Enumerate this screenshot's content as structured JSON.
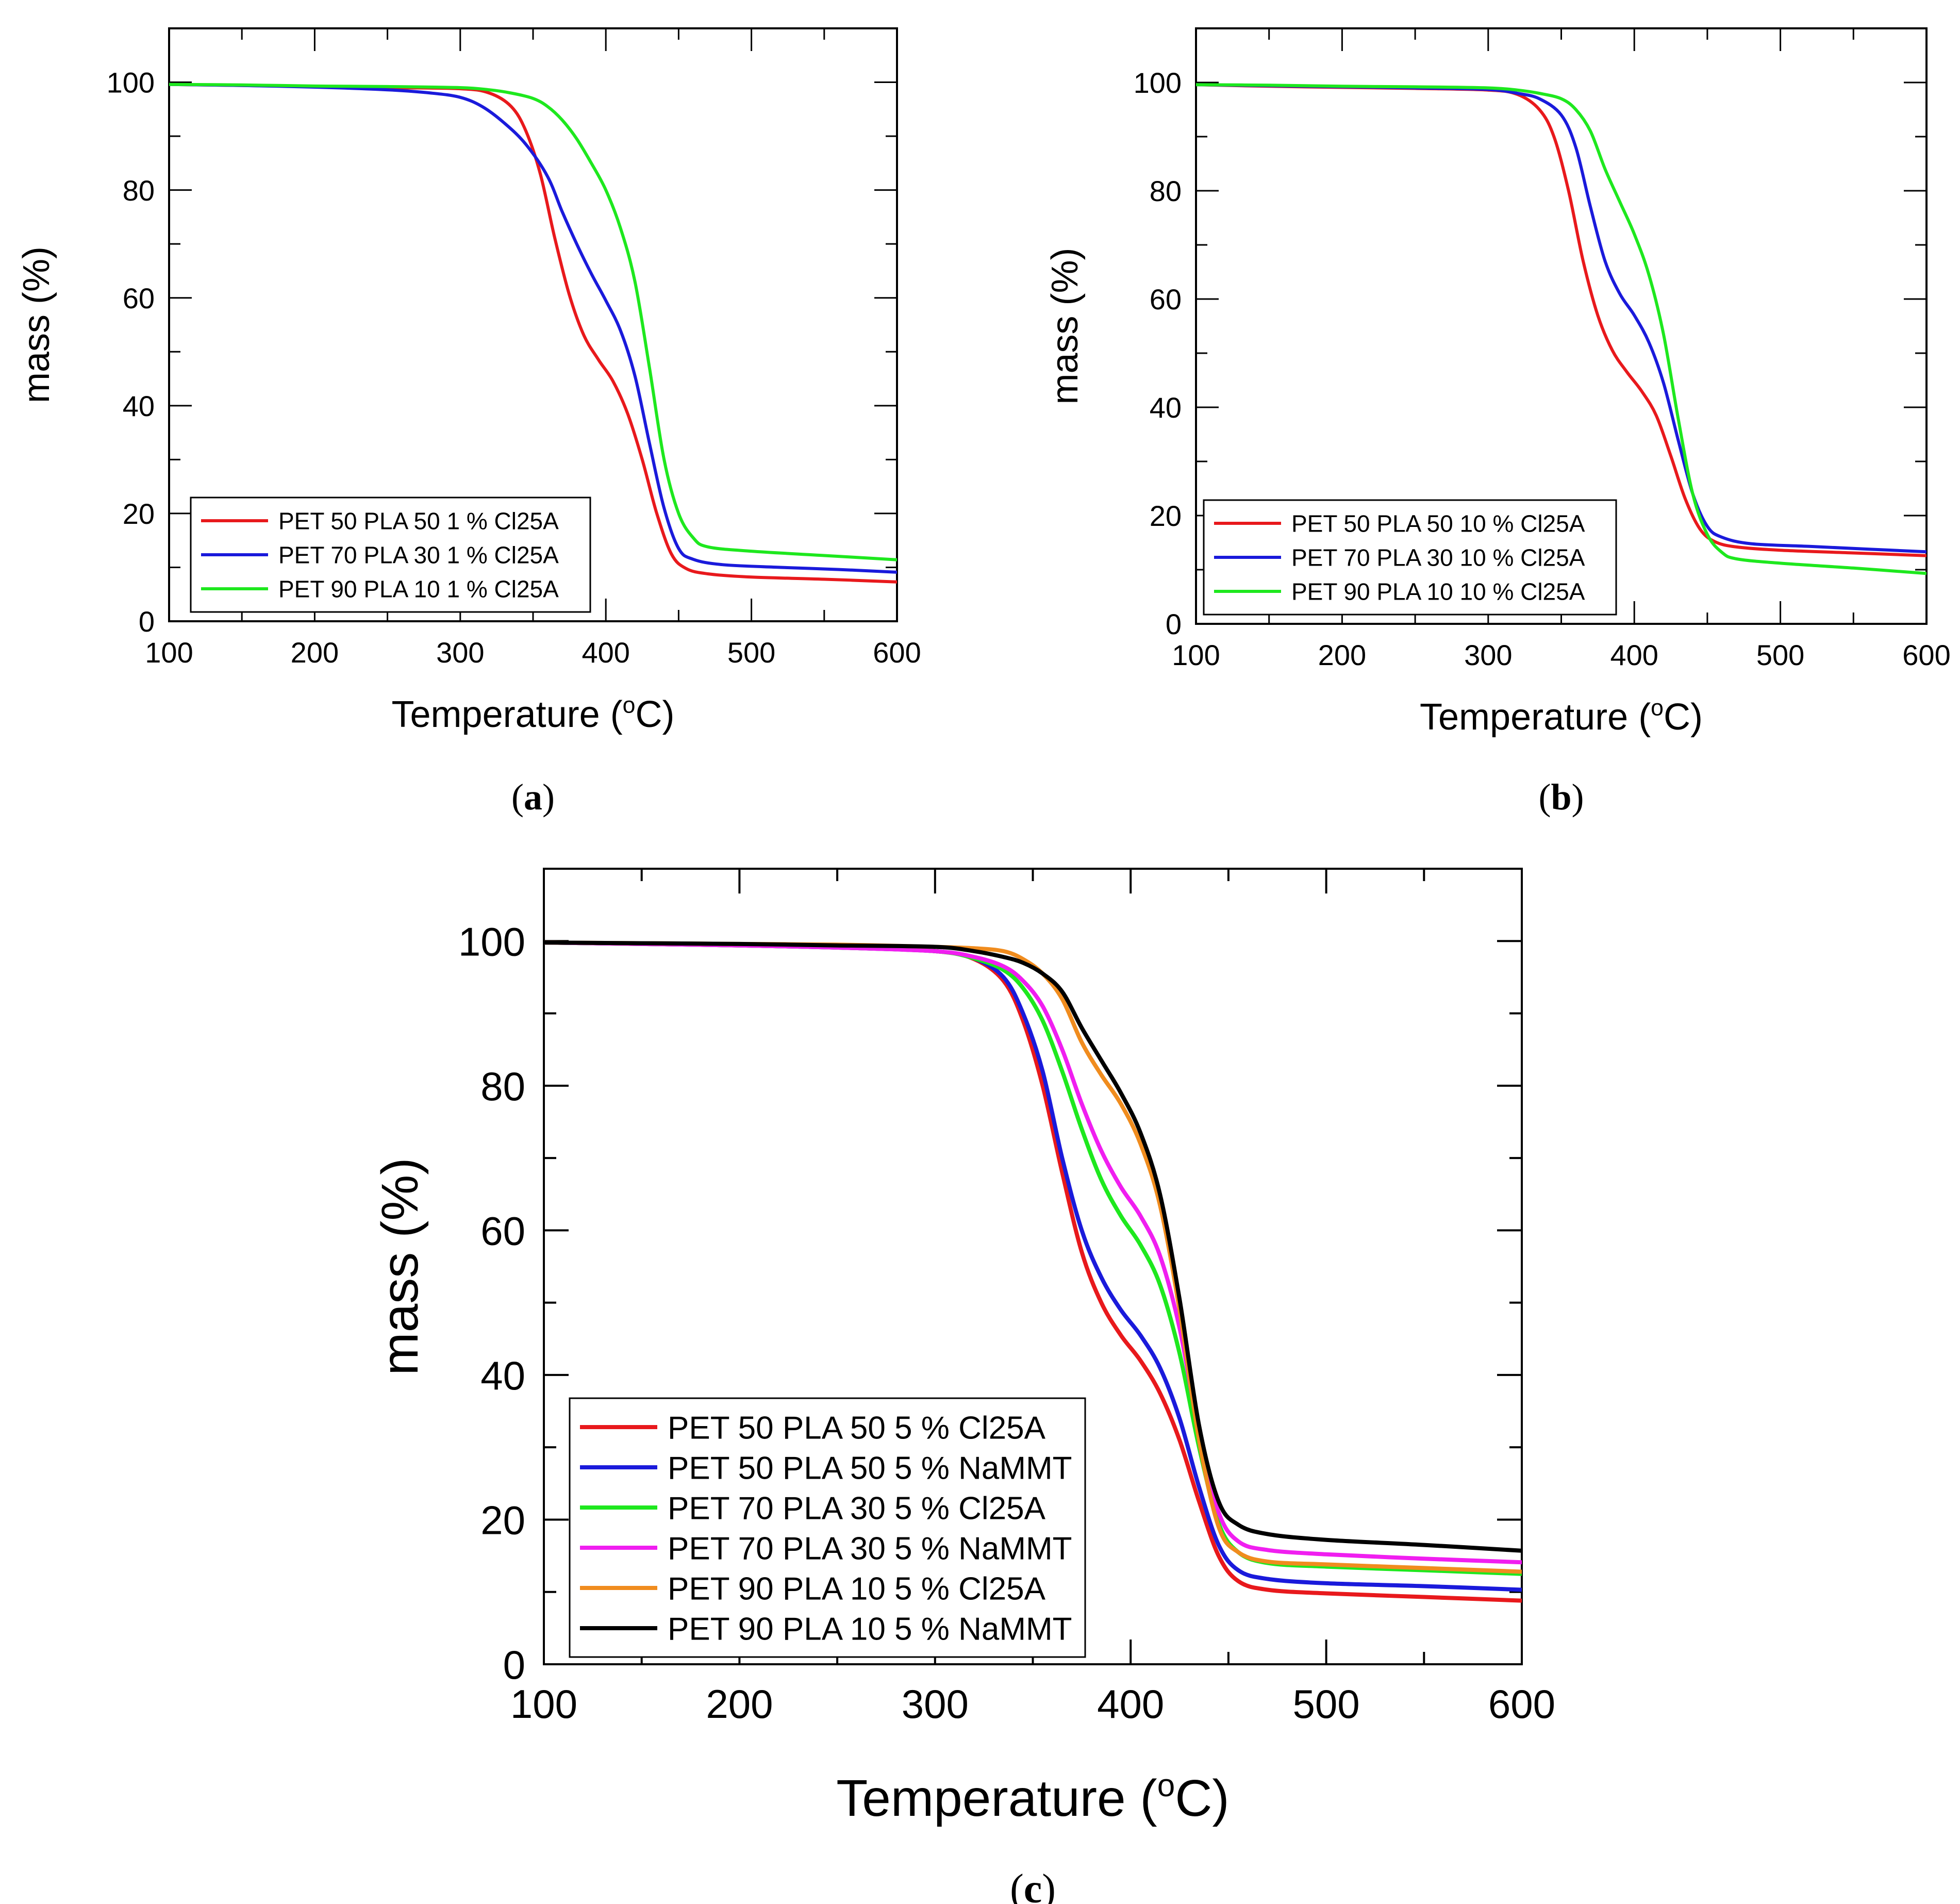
{
  "chart_data": [
    {
      "id": "a",
      "type": "line",
      "panel_label_open": "(",
      "panel_label_letter": "a",
      "panel_label_close": ")",
      "xlabel": "Temperature (",
      "xlabel_unit_sup": "o",
      "xlabel_unit_tail": "C)",
      "ylabel": "mass (%)",
      "xlim": [
        100,
        600
      ],
      "ylim": [
        0,
        110
      ],
      "xticks": [
        100,
        200,
        300,
        400,
        500,
        600
      ],
      "yticks": [
        0,
        20,
        40,
        60,
        80,
        100
      ],
      "legend_position": "bottom-left",
      "series": [
        {
          "name": "PET 50 PLA 50 1 % Cl25A",
          "color": "#e8191c",
          "x": [
            100,
            150,
            200,
            250,
            300,
            320,
            335,
            345,
            355,
            365,
            375,
            385,
            395,
            405,
            415,
            425,
            435,
            445,
            455,
            470,
            500,
            550,
            600
          ],
          "y": [
            99.6,
            99.4,
            99.2,
            99.0,
            98.8,
            98.0,
            95.5,
            91.0,
            83.0,
            71.0,
            60.5,
            53.0,
            48.5,
            44.5,
            38.5,
            30.0,
            20.0,
            12.5,
            9.8,
            8.8,
            8.2,
            7.8,
            7.3
          ]
        },
        {
          "name": "PET 70 PLA 30 1 % Cl25A",
          "color": "#1a1adb",
          "x": [
            100,
            150,
            200,
            250,
            280,
            300,
            315,
            330,
            345,
            360,
            370,
            380,
            390,
            400,
            410,
            420,
            430,
            440,
            450,
            460,
            480,
            520,
            560,
            600
          ],
          "y": [
            99.6,
            99.4,
            99.1,
            98.6,
            98.0,
            97.2,
            95.5,
            92.5,
            88.5,
            82.5,
            76.0,
            70.0,
            64.5,
            59.5,
            54.0,
            45.5,
            33.0,
            21.0,
            13.5,
            11.5,
            10.5,
            10.0,
            9.6,
            9.1
          ]
        },
        {
          "name": "PET 90 PLA 10 1 % Cl25A",
          "color": "#1ee81e",
          "x": [
            100,
            150,
            200,
            250,
            300,
            320,
            335,
            350,
            360,
            370,
            380,
            390,
            400,
            410,
            420,
            430,
            440,
            450,
            460,
            470,
            500,
            550,
            600
          ],
          "y": [
            99.6,
            99.5,
            99.3,
            99.2,
            99.0,
            98.6,
            98.0,
            97.0,
            95.5,
            93.0,
            89.5,
            85.0,
            80.0,
            73.0,
            63.0,
            47.0,
            30.0,
            20.0,
            15.5,
            13.8,
            13.0,
            12.2,
            11.4
          ]
        }
      ]
    },
    {
      "id": "b",
      "type": "line",
      "panel_label_open": "(",
      "panel_label_letter": "b",
      "panel_label_close": ")",
      "xlabel": "Temperature (",
      "xlabel_unit_sup": "o",
      "xlabel_unit_tail": "C)",
      "ylabel": "mass (%)",
      "xlim": [
        100,
        600
      ],
      "ylim": [
        0,
        110
      ],
      "xticks": [
        100,
        200,
        300,
        400,
        500,
        600
      ],
      "yticks": [
        0,
        20,
        40,
        60,
        80,
        100
      ],
      "legend_position": "bottom-left",
      "series": [
        {
          "name": "PET 50 PLA 50 10 % Cl25A",
          "color": "#e8191c",
          "x": [
            100,
            150,
            200,
            250,
            300,
            320,
            335,
            345,
            355,
            365,
            375,
            385,
            395,
            405,
            415,
            425,
            435,
            445,
            455,
            470,
            500,
            550,
            600
          ],
          "y": [
            99.6,
            99.3,
            99.1,
            98.9,
            98.6,
            97.8,
            95.0,
            90.0,
            80.0,
            67.0,
            57.0,
            50.5,
            46.5,
            43.0,
            38.5,
            31.0,
            23.0,
            17.5,
            15.2,
            14.2,
            13.6,
            13.1,
            12.6
          ]
        },
        {
          "name": "PET 70 PLA 30 10 % Cl25A",
          "color": "#1a1adb",
          "x": [
            100,
            150,
            200,
            250,
            300,
            320,
            335,
            350,
            360,
            370,
            380,
            390,
            400,
            410,
            420,
            430,
            440,
            450,
            460,
            480,
            520,
            560,
            600
          ],
          "y": [
            99.6,
            99.4,
            99.2,
            99.0,
            98.7,
            98.0,
            97.0,
            94.0,
            88.0,
            77.0,
            67.0,
            61.0,
            57.0,
            52.0,
            44.5,
            34.0,
            24.0,
            18.0,
            16.0,
            14.8,
            14.3,
            13.8,
            13.3
          ]
        },
        {
          "name": "PET 90 PLA 10 10 % Cl25A",
          "color": "#1ee81e",
          "x": [
            100,
            150,
            200,
            250,
            300,
            320,
            335,
            350,
            360,
            370,
            380,
            390,
            400,
            410,
            420,
            430,
            440,
            450,
            460,
            470,
            500,
            550,
            600
          ],
          "y": [
            99.6,
            99.5,
            99.3,
            99.2,
            99.0,
            98.6,
            98.0,
            97.0,
            95.0,
            91.0,
            84.0,
            78.0,
            72.0,
            64.5,
            53.5,
            38.0,
            24.0,
            16.5,
            13.2,
            12.0,
            11.2,
            10.3,
            9.3
          ]
        }
      ]
    },
    {
      "id": "c",
      "type": "line",
      "panel_label_open": "(",
      "panel_label_letter": "c",
      "panel_label_close": ")",
      "xlabel": "Temperature (",
      "xlabel_unit_sup": "o",
      "xlabel_unit_tail": "C)",
      "ylabel": "mass (%)",
      "xlim": [
        100,
        600
      ],
      "ylim": [
        0,
        110
      ],
      "xticks": [
        100,
        200,
        300,
        400,
        500,
        600
      ],
      "yticks": [
        0,
        20,
        40,
        60,
        80,
        100
      ],
      "legend_position": "bottom-left",
      "series": [
        {
          "name": "PET 50 PLA 50 5 % Cl25A",
          "color": "#e8191c",
          "x": [
            100,
            150,
            200,
            250,
            300,
            320,
            335,
            345,
            355,
            365,
            375,
            385,
            395,
            405,
            415,
            425,
            435,
            445,
            455,
            470,
            500,
            550,
            600
          ],
          "y": [
            99.8,
            99.6,
            99.4,
            99.1,
            98.6,
            97.5,
            94.5,
            89.0,
            80.0,
            68.0,
            57.0,
            50.0,
            45.5,
            42.0,
            37.5,
            31.0,
            22.5,
            15.0,
            11.5,
            10.3,
            9.8,
            9.3,
            8.8
          ]
        },
        {
          "name": "PET 50 PLA 50 5 % NaMMT",
          "color": "#1a1adb",
          "x": [
            100,
            150,
            200,
            250,
            300,
            320,
            335,
            345,
            355,
            365,
            375,
            385,
            395,
            405,
            415,
            425,
            435,
            445,
            455,
            470,
            500,
            550,
            600
          ],
          "y": [
            99.8,
            99.6,
            99.4,
            99.1,
            98.6,
            97.6,
            95.0,
            90.0,
            82.0,
            70.0,
            60.0,
            53.5,
            49.0,
            45.5,
            41.0,
            34.0,
            24.5,
            16.5,
            13.0,
            11.8,
            11.2,
            10.8,
            10.3
          ]
        },
        {
          "name": "PET 70 PLA 30 5 % Cl25A",
          "color": "#1ee81e",
          "x": [
            100,
            150,
            200,
            250,
            300,
            320,
            335,
            345,
            355,
            365,
            375,
            385,
            395,
            405,
            415,
            425,
            435,
            445,
            455,
            470,
            500,
            550,
            600
          ],
          "y": [
            99.8,
            99.6,
            99.4,
            99.1,
            98.6,
            97.6,
            96.0,
            93.5,
            89.0,
            82.0,
            74.0,
            67.0,
            62.0,
            58.0,
            52.5,
            43.0,
            30.0,
            19.5,
            15.5,
            14.0,
            13.5,
            13.0,
            12.5
          ]
        },
        {
          "name": "PET 70 PLA 30 5 % NaMMT",
          "color": "#f01ef0",
          "x": [
            100,
            150,
            200,
            250,
            300,
            320,
            335,
            345,
            355,
            365,
            375,
            385,
            395,
            405,
            415,
            425,
            435,
            445,
            455,
            470,
            500,
            550,
            600
          ],
          "y": [
            99.8,
            99.6,
            99.4,
            99.1,
            98.6,
            97.8,
            96.5,
            94.5,
            91.0,
            85.0,
            77.5,
            71.0,
            66.0,
            62.0,
            56.5,
            46.5,
            32.0,
            21.0,
            17.0,
            15.8,
            15.2,
            14.6,
            14.1
          ]
        },
        {
          "name": "PET 90 PLA 10 5 % Cl25A",
          "color": "#f08c1e",
          "x": [
            100,
            150,
            200,
            250,
            300,
            320,
            335,
            345,
            355,
            365,
            375,
            385,
            395,
            405,
            415,
            425,
            435,
            445,
            455,
            470,
            500,
            550,
            600
          ],
          "y": [
            99.8,
            99.7,
            99.6,
            99.5,
            99.2,
            99.0,
            98.6,
            97.5,
            95.5,
            92.0,
            86.0,
            81.5,
            77.5,
            72.0,
            63.5,
            49.0,
            31.0,
            19.0,
            15.5,
            14.2,
            13.8,
            13.3,
            12.8
          ]
        },
        {
          "name": "PET 90 PLA 10 5 % NaMMT",
          "color": "#000000",
          "x": [
            100,
            150,
            200,
            250,
            300,
            320,
            335,
            345,
            355,
            365,
            375,
            385,
            395,
            405,
            415,
            425,
            435,
            445,
            455,
            470,
            500,
            550,
            600
          ],
          "y": [
            99.8,
            99.7,
            99.6,
            99.4,
            99.2,
            98.6,
            97.8,
            97.0,
            95.5,
            93.0,
            88.0,
            83.5,
            79.0,
            73.5,
            65.0,
            50.5,
            33.0,
            22.5,
            19.3,
            18.0,
            17.2,
            16.5,
            15.7
          ]
        }
      ]
    }
  ]
}
